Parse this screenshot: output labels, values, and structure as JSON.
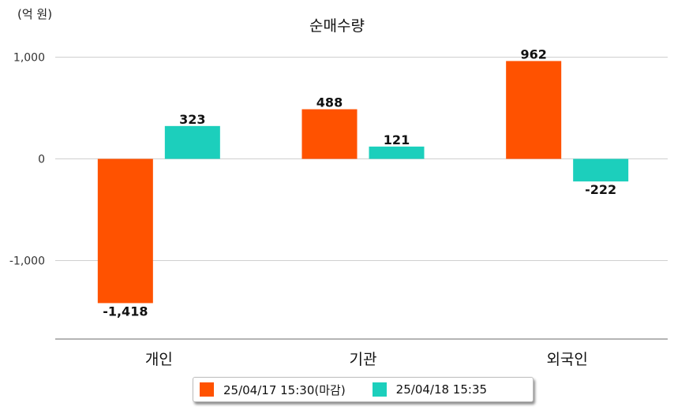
{
  "chart_data": {
    "type": "bar",
    "title": "순매수량",
    "unit_label": "(억 원)",
    "categories": [
      "개인",
      "기관",
      "외국인"
    ],
    "series": [
      {
        "name": "25/04/17 15:30(마감)",
        "color": "#ff5200",
        "values": [
          -1418,
          488,
          962
        ]
      },
      {
        "name": "25/04/18 15:35",
        "color": "#1ccfbc",
        "values": [
          323,
          121,
          -222
        ]
      }
    ],
    "y_ticks": [
      1000,
      0,
      -1000
    ],
    "y_tick_labels": [
      "1,000",
      "0",
      "-1,000"
    ],
    "ylim": [
      -1750,
      1000
    ],
    "grid": true,
    "legend_position": "bottom-center"
  }
}
